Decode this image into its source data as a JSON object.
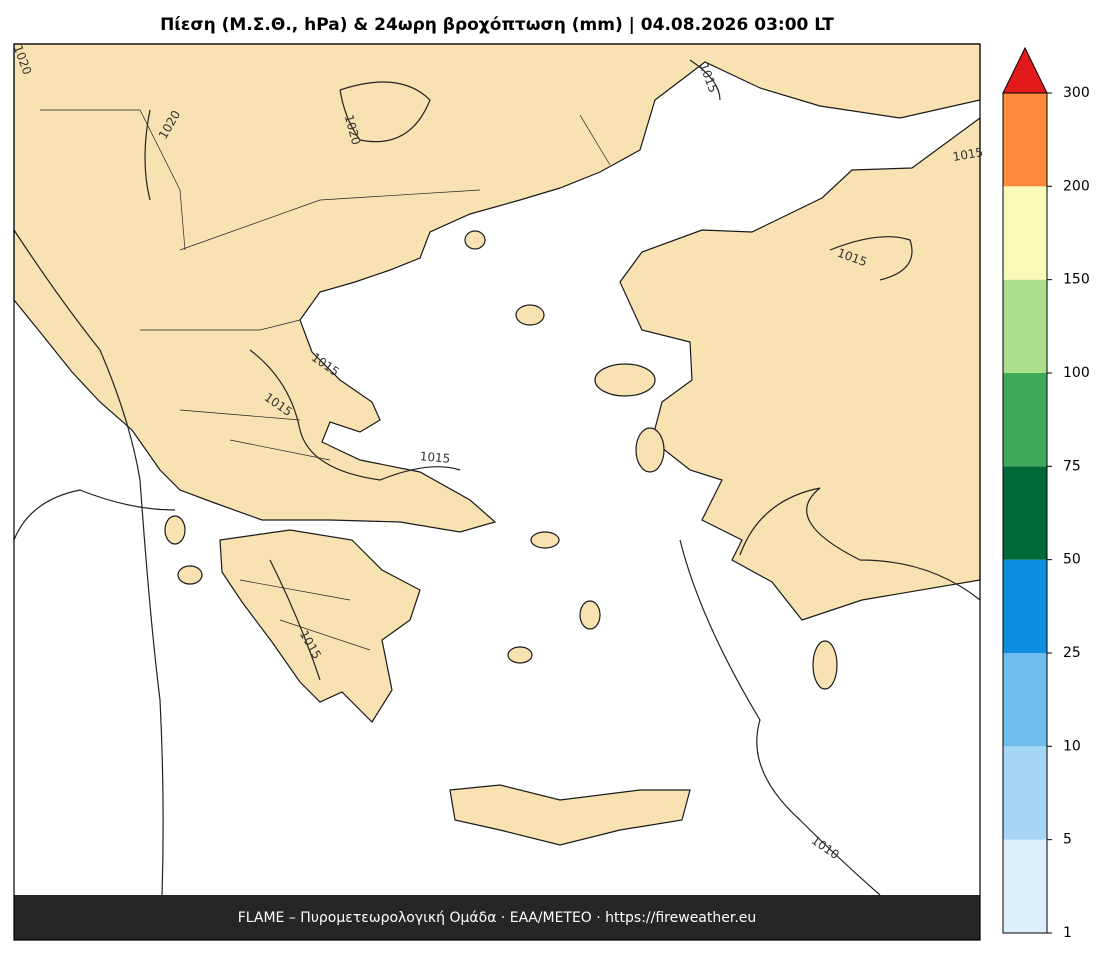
{
  "header": {
    "title": "Πίεση (Μ.Σ.Θ., hPa) & 24ωρη βροχόπτωση (mm)  |  04.08.2026 03:00 LT"
  },
  "isobars": {
    "labels": [
      1020,
      1020,
      1020,
      1015,
      1015,
      1015,
      1015,
      1015,
      1015,
      1015,
      1010
    ]
  },
  "colorbar": {
    "ticks": [
      1,
      5,
      10,
      25,
      50,
      75,
      100,
      150,
      200,
      300
    ],
    "colors": [
      "#dbeffd",
      "#a6d5f5",
      "#6fbdef",
      "#0f8fe0",
      "#00693a",
      "#3faa5a",
      "#addf8f",
      "#f8fbb8",
      "#ff8c3c"
    ],
    "extend_color": "#e31a1c"
  },
  "footer": {
    "text": "FLAME – Πυρομετεωρολογική Ομάδα · ΕΑΑ/METEO · https://fireweather.eu"
  }
}
